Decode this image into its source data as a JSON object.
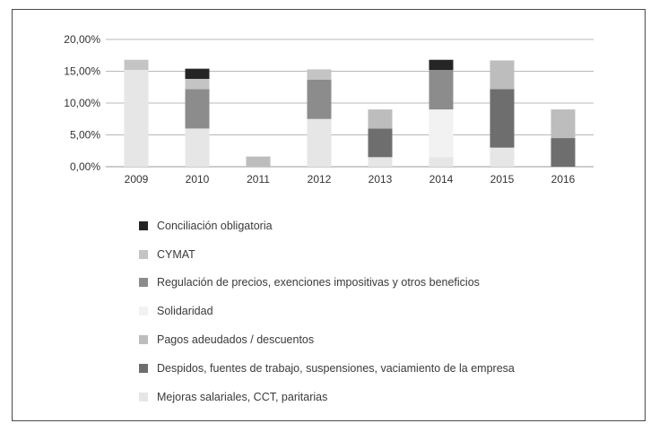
{
  "chart_data": {
    "type": "bar",
    "stacked": true,
    "categories": [
      "2009",
      "2010",
      "2011",
      "2012",
      "2013",
      "2014",
      "2015",
      "2016"
    ],
    "y_ticks": [
      "0,00%",
      "5,00%",
      "10,00%",
      "15,00%",
      "20,00%"
    ],
    "ylim": [
      0,
      20
    ],
    "grid": true,
    "legend_position": "bottom",
    "series": [
      {
        "name": "Mejoras salariales, CCT, paritarias",
        "color": "#e6e6e6",
        "values": [
          15.2,
          6.0,
          0,
          7.5,
          1.5,
          1.5,
          3.0,
          0
        ]
      },
      {
        "name": "Despidos, fuentes de trabajo, suspensiones, vaciamiento de la empresa",
        "color": "#6e6e6e",
        "values": [
          0,
          0,
          0,
          0,
          4.5,
          0,
          9.2,
          4.5
        ]
      },
      {
        "name": "Pagos adeudados / descuentos",
        "color": "#bdbdbd",
        "values": [
          0,
          0,
          1.6,
          0,
          3.0,
          0,
          4.5,
          4.5
        ]
      },
      {
        "name": "Solidaridad",
        "color": "#f2f2f2",
        "values": [
          0,
          0,
          0,
          0,
          0,
          7.5,
          0,
          0
        ]
      },
      {
        "name": "Regulación de precios, exenciones impositivas y otros beneficios",
        "color": "#8c8c8c",
        "values": [
          0,
          6.2,
          0,
          6.2,
          0,
          6.2,
          0,
          0
        ]
      },
      {
        "name": "CYMAT",
        "color": "#c4c4c4",
        "values": [
          1.6,
          1.6,
          0,
          1.6,
          0,
          0,
          0,
          0
        ]
      },
      {
        "name": "Conciliación obligatoria",
        "color": "#252525",
        "values": [
          0,
          1.6,
          0,
          0,
          0,
          1.6,
          0,
          0
        ]
      }
    ],
    "legend_order": [
      "Conciliación obligatoria",
      "CYMAT",
      "Regulación de precios, exenciones impositivas y otros beneficios",
      "Solidaridad",
      "Pagos adeudados / descuentos",
      "Despidos, fuentes de trabajo, suspensiones, vaciamiento de la empresa",
      "Mejoras salariales, CCT, paritarias"
    ]
  }
}
